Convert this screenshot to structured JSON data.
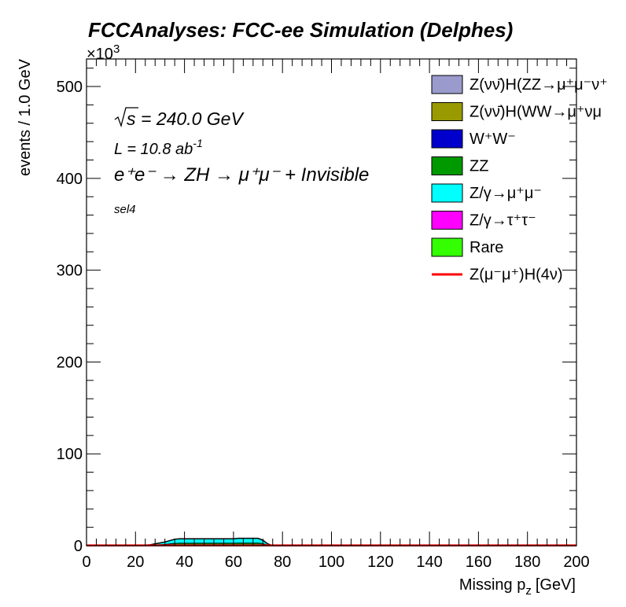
{
  "chart_data": {
    "type": "area",
    "title": "FCCAnalyses: FCC-ee Simulation (Delphes)",
    "xlabel": "Missing p_z [GeV]",
    "xlabel_main": "Missing p",
    "xlabel_sub": "z",
    "xlabel_unit": "[GeV]",
    "ylabel": "events / 1.0 GeV",
    "y_multiplier": {
      "base": "×10",
      "exp": "3"
    },
    "xlim": [
      0,
      200
    ],
    "ylim": [
      0,
      530
    ],
    "x_ticks": [
      0,
      20,
      40,
      60,
      80,
      100,
      120,
      140,
      160,
      180,
      200
    ],
    "y_ticks": [
      0,
      100,
      200,
      300,
      400,
      500
    ],
    "grid": false,
    "legend_placement": "top-right",
    "annotations": {
      "sqrt_s": "= 240.0 GeV",
      "lumi_main": "L = 10.8 ab",
      "lumi_exp": "-1",
      "process": "e⁺e⁻ → ZH → μ⁺μ⁻ + Invisible",
      "selection": "sel4"
    },
    "series": [
      {
        "name": "Z(νν̄)H(ZZ→μ⁺μ⁻ν⁺ν⁻)",
        "legend_label": "Z(νν̄)H(ZZ→μ⁺μ⁻ν⁺",
        "color": "#9a9acd",
        "style": "fill"
      },
      {
        "name": "Z(νν̄)H(WW→μ⁺νμ⁻ν)",
        "legend_label": "Z(νν̄)H(WW→μ⁺νμ",
        "color": "#999900",
        "style": "fill"
      },
      {
        "name": "W⁺W⁻",
        "legend_label": "W⁺W⁻",
        "color": "#0000cc",
        "style": "fill"
      },
      {
        "name": "ZZ",
        "legend_label": "ZZ",
        "color": "#009900",
        "style": "fill"
      },
      {
        "name": "Z/γ→μ⁺μ⁻",
        "legend_label": "Z/γ→μ⁺μ⁻",
        "color": "#00ffff",
        "style": "fill"
      },
      {
        "name": "Z/γ→τ⁺τ⁻",
        "legend_label": "Z/γ→τ⁺τ⁻",
        "color": "#ff00ff",
        "style": "fill"
      },
      {
        "name": "Rare",
        "legend_label": "Rare",
        "color": "#33ff00",
        "style": "fill"
      },
      {
        "name": "Z(μ⁻μ⁺)H(4ν)",
        "legend_label": "Z(μ⁻μ⁺)H(4ν)",
        "color": "#ff0000",
        "style": "line"
      }
    ],
    "stack_total": {
      "x": [
        0,
        20,
        24,
        26,
        28,
        30,
        32,
        34,
        36,
        38,
        40,
        45,
        50,
        55,
        60,
        62,
        65,
        70,
        72,
        74,
        76,
        80,
        200
      ],
      "y": [
        0,
        0,
        0.5,
        1,
        2,
        3,
        4,
        5.5,
        7,
        7.5,
        7.5,
        7.5,
        7.5,
        7.5,
        7.5,
        8,
        8,
        8,
        6,
        2,
        0,
        0,
        0
      ]
    },
    "signal": {
      "x": [
        0,
        200
      ],
      "y": [
        0.3,
        0.3
      ]
    }
  }
}
